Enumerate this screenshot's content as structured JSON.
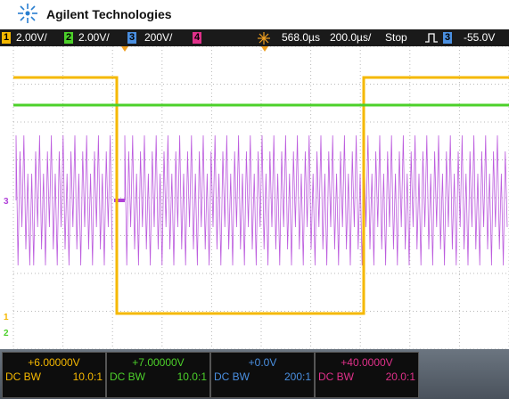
{
  "header": {
    "brand": "Agilent Technologies"
  },
  "status": {
    "channels": [
      {
        "number": "1",
        "scale": "2.00V/"
      },
      {
        "number": "2",
        "scale": "2.00V/"
      },
      {
        "number": "3",
        "scale": "200V/"
      },
      {
        "number": "4"
      }
    ],
    "delay": "568.0µs",
    "timebase": "200.0µs/",
    "mode": "Stop",
    "trigger_channel": "3",
    "trigger_level": "-55.0V"
  },
  "markers": [
    "3",
    "1",
    "2"
  ],
  "footer": {
    "channels": [
      {
        "offset": "+6.00000V",
        "coupling": "DC BW",
        "probe": "10.0:1"
      },
      {
        "offset": "+7.00000V",
        "coupling": "DC BW",
        "probe": "10.0:1"
      },
      {
        "offset": "+0.0V",
        "coupling": "DC BW",
        "probe": "200:1"
      },
      {
        "offset": "+40.0000V",
        "coupling": "DC BW",
        "probe": "20.0:1"
      }
    ]
  }
}
